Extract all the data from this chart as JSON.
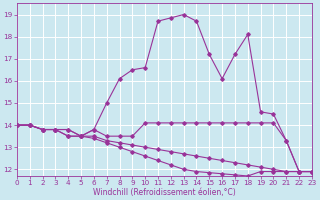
{
  "xlabel": "Windchill (Refroidissement éolien,°C)",
  "background_color": "#cce8f0",
  "line_color": "#993399",
  "grid_color": "#ffffff",
  "x_values": [
    0,
    1,
    2,
    3,
    4,
    5,
    6,
    7,
    8,
    9,
    10,
    11,
    12,
    13,
    14,
    15,
    16,
    17,
    18,
    19,
    20,
    21,
    22,
    23
  ],
  "series": [
    [
      14.0,
      14.0,
      13.8,
      13.8,
      13.8,
      13.5,
      13.8,
      15.0,
      16.1,
      16.5,
      16.6,
      18.7,
      18.85,
      19.0,
      18.7,
      17.2,
      16.1,
      17.2,
      18.1,
      14.6,
      14.5,
      13.3,
      11.9,
      11.9
    ],
    [
      14.0,
      14.0,
      13.8,
      13.8,
      13.8,
      13.5,
      13.8,
      13.5,
      13.5,
      13.5,
      14.1,
      14.1,
      14.1,
      14.1,
      14.1,
      14.1,
      14.1,
      14.1,
      14.1,
      14.1,
      14.1,
      13.3,
      11.9,
      11.9
    ],
    [
      14.0,
      14.0,
      13.8,
      13.8,
      13.5,
      13.5,
      13.5,
      13.3,
      13.2,
      13.1,
      13.0,
      12.9,
      12.8,
      12.7,
      12.6,
      12.5,
      12.4,
      12.3,
      12.2,
      12.1,
      12.0,
      11.9,
      11.9,
      11.9
    ],
    [
      14.0,
      14.0,
      13.8,
      13.8,
      13.5,
      13.5,
      13.4,
      13.2,
      13.0,
      12.8,
      12.6,
      12.4,
      12.2,
      12.0,
      11.9,
      11.85,
      11.8,
      11.75,
      11.7,
      11.9,
      11.9,
      11.9,
      11.9,
      11.9
    ]
  ],
  "xlim": [
    0,
    23
  ],
  "ylim": [
    11.7,
    19.5
  ],
  "yticks": [
    12,
    13,
    14,
    15,
    16,
    17,
    18,
    19
  ],
  "xticks": [
    0,
    1,
    2,
    3,
    4,
    5,
    6,
    7,
    8,
    9,
    10,
    11,
    12,
    13,
    14,
    15,
    16,
    17,
    18,
    19,
    20,
    21,
    22,
    23
  ],
  "tick_fontsize": 5.2,
  "xlabel_fontsize": 5.5
}
